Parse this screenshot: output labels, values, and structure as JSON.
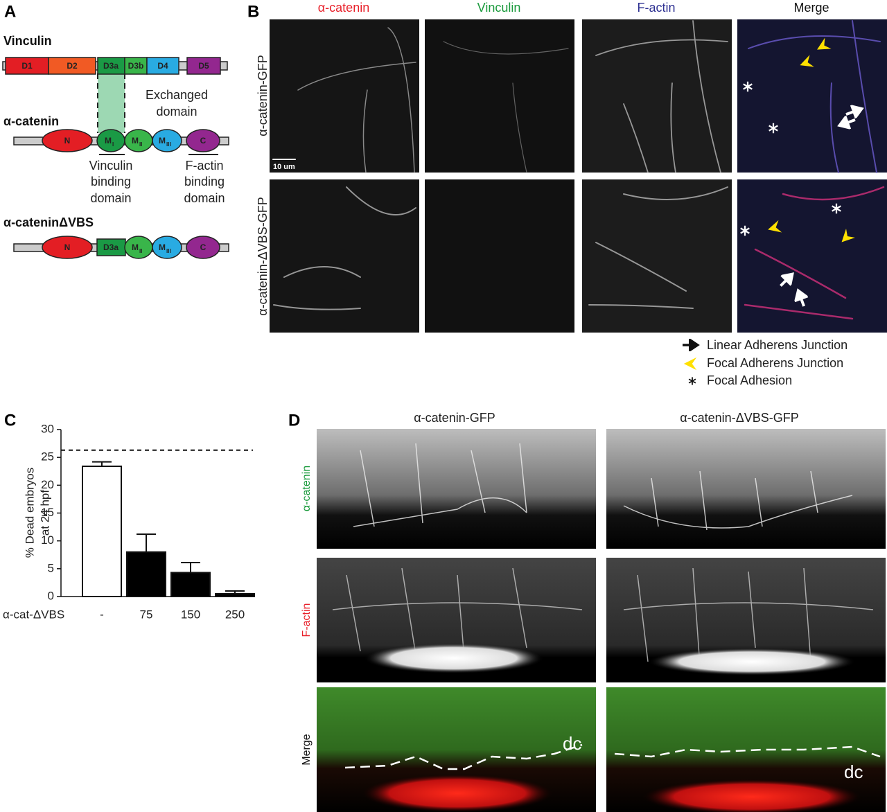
{
  "panel_labels": [
    "A",
    "B",
    "C",
    "D"
  ],
  "panel_a": {
    "vinculin": {
      "title": "Vinculin",
      "domains": [
        "D1",
        "D2",
        "D3a",
        "D3b",
        "D4",
        "D5"
      ]
    },
    "exchanged_label": [
      "Exchanged",
      "domain"
    ],
    "alpha_catenin": {
      "title": "α-catenin",
      "domains": [
        {
          "label": "N"
        },
        {
          "label": "M",
          "sub": "I"
        },
        {
          "label": "M",
          "sub": "II"
        },
        {
          "label": "M",
          "sub": "III"
        },
        {
          "label": "C"
        }
      ]
    },
    "vinculin_binding_label": [
      "Vinculin",
      "binding",
      "domain"
    ],
    "factin_binding_label": [
      "F-actin",
      "binding",
      "domain"
    ],
    "delta_vbs": {
      "title": "α-cateninΔVBS",
      "domains": [
        {
          "label": "N"
        },
        {
          "label": "D3a"
        },
        {
          "label": "M",
          "sub": "II"
        },
        {
          "label": "M",
          "sub": "III"
        },
        {
          "label": "C"
        }
      ]
    }
  },
  "panel_b": {
    "columns": [
      "α-catenin",
      "Vinculin",
      "F-actin",
      "Merge"
    ],
    "rows": [
      "α-catenin-GFP",
      "α-catenin-ΔVBS-GFP"
    ],
    "scale_bar": "10 um",
    "legend": [
      "Linear Adherens Junction",
      "Focal Adherens Junction",
      "Focal Adhesion"
    ]
  },
  "chart_data": {
    "type": "bar",
    "y_label": [
      "% Dead embryos",
      "at 24 hpf"
    ],
    "x_label": "α-cat-ΔVBS",
    "categories": [
      "-",
      "75",
      "150",
      "250"
    ],
    "values": [
      23.4,
      8.0,
      4.3,
      0.5
    ],
    "errors": [
      0.8,
      3.2,
      1.8,
      0.5
    ],
    "colors": [
      "#ffffff",
      "#000000",
      "#000000",
      "#000000"
    ],
    "ylim": [
      0,
      30
    ],
    "yticks": [
      0,
      5,
      10,
      15,
      20,
      25,
      30
    ],
    "reference_line": 26.3
  },
  "panel_d": {
    "columns": [
      "α-catenin-GFP",
      "α-catenin-ΔVBS-GFP"
    ],
    "rows": [
      "α-catenin",
      "F-actin",
      "Merge"
    ],
    "annotations": [
      "dc",
      "dc"
    ]
  }
}
